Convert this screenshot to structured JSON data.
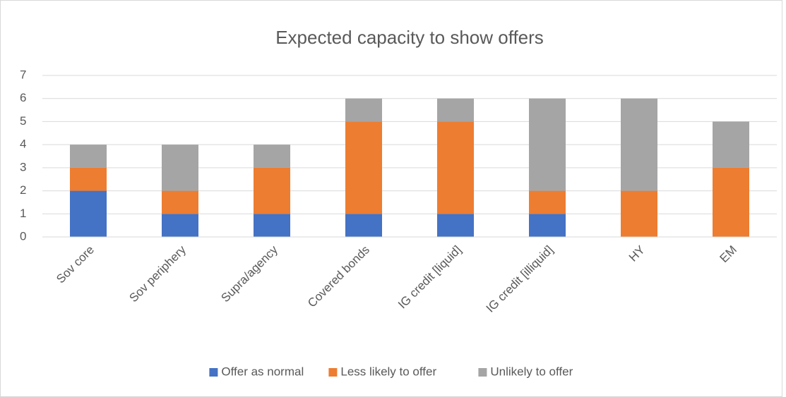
{
  "chart_data": {
    "type": "bar",
    "stacked": true,
    "title": "Expected capacity to show offers",
    "categories": [
      "Sov core",
      "Sov periphery",
      "Supra/agency",
      "Covered bonds",
      "IG credit [liquid]",
      "IG credit [illiquid]",
      "HY",
      "EM"
    ],
    "series": [
      {
        "name": "Offer as normal",
        "color": "#4472c4",
        "values": [
          2,
          1,
          1,
          1,
          1,
          1,
          0,
          0
        ]
      },
      {
        "name": "Less likely to offer",
        "color": "#ed7d31",
        "values": [
          1,
          1,
          2,
          4,
          4,
          1,
          2,
          3
        ]
      },
      {
        "name": "Unlikely to offer",
        "color": "#a5a5a5",
        "values": [
          1,
          2,
          1,
          1,
          1,
          4,
          4,
          2
        ]
      }
    ],
    "ylim": [
      0,
      7
    ],
    "yticks": [
      0,
      1,
      2,
      3,
      4,
      5,
      6,
      7
    ],
    "grid": true,
    "legend": "bottom"
  }
}
